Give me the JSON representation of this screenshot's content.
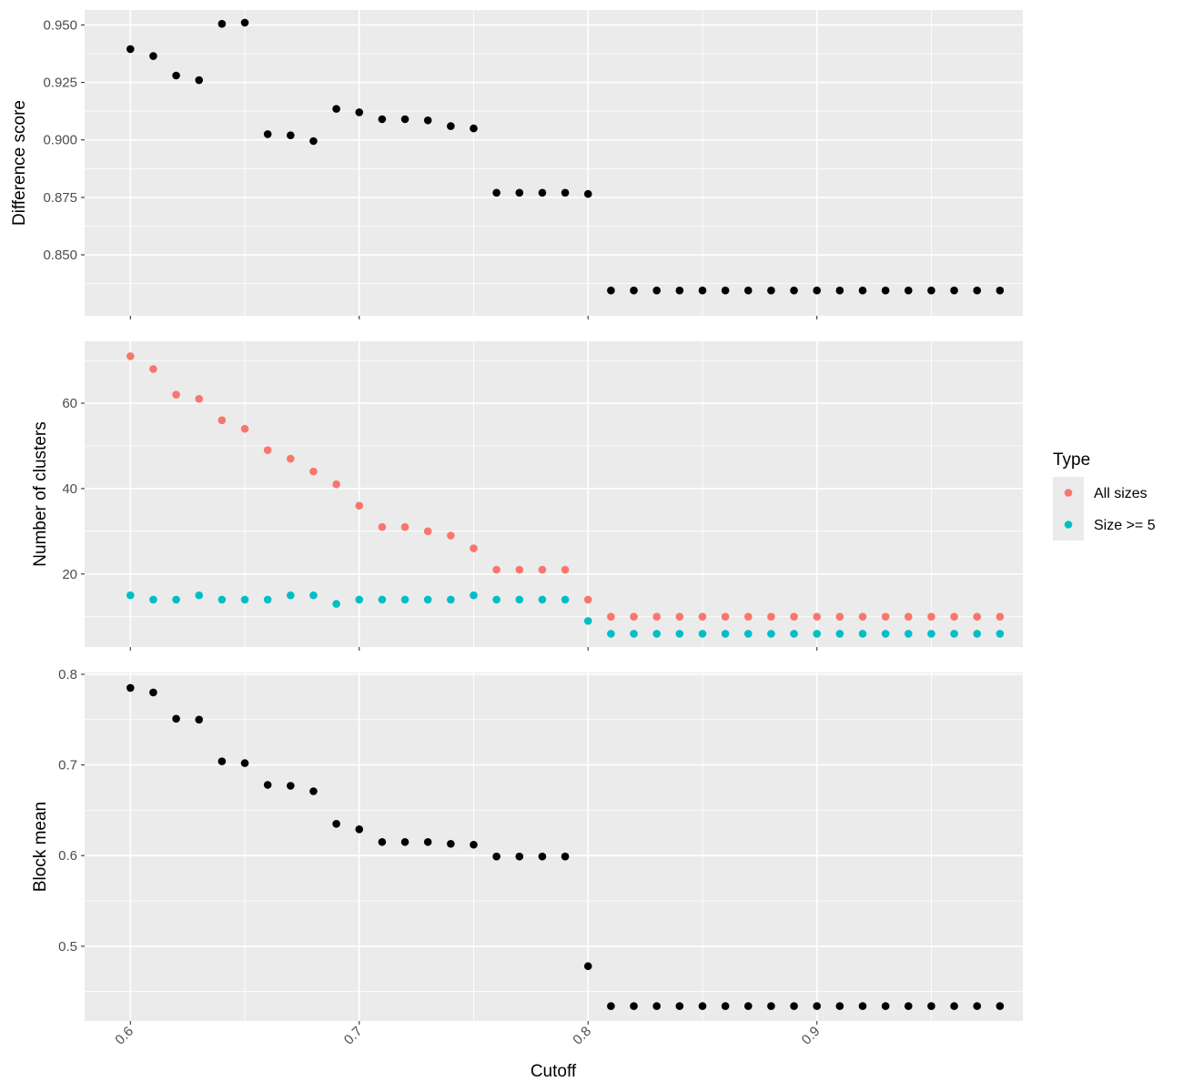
{
  "chart_data": {
    "type": "scatter",
    "xlabel": "Cutoff",
    "xlim": [
      0.58,
      0.99
    ],
    "xticks": [
      0.6,
      0.7,
      0.8,
      0.9
    ],
    "x": [
      0.6,
      0.61,
      0.62,
      0.63,
      0.64,
      0.65,
      0.66,
      0.67,
      0.68,
      0.69,
      0.7,
      0.71,
      0.72,
      0.73,
      0.74,
      0.75,
      0.76,
      0.77,
      0.78,
      0.79,
      0.8,
      0.81,
      0.82,
      0.83,
      0.84,
      0.85,
      0.86,
      0.87,
      0.88,
      0.89,
      0.9,
      0.91,
      0.92,
      0.93,
      0.94,
      0.95,
      0.96,
      0.97,
      0.98
    ],
    "grid": true,
    "legend": {
      "title": "Type",
      "placement": "right",
      "entries": [
        {
          "label": "All sizes",
          "color": "#f8766d"
        },
        {
          "label": "Size >= 5",
          "color": "#00bfc4"
        }
      ]
    },
    "panels": [
      {
        "ylabel": "Difference score",
        "ylim": [
          0.8235,
          0.9565
        ],
        "yticks": [
          0.85,
          0.875,
          0.9,
          0.925,
          0.95
        ],
        "series": [
          {
            "color": "#000000",
            "values": [
              0.9395,
              0.9365,
              0.928,
              0.926,
              0.9505,
              0.951,
              0.9025,
              0.902,
              0.8995,
              0.9135,
              0.912,
              0.909,
              0.909,
              0.9085,
              0.906,
              0.905,
              0.877,
              0.877,
              0.877,
              0.877,
              0.8765,
              0.8345,
              0.8345,
              0.8345,
              0.8345,
              0.8345,
              0.8345,
              0.8345,
              0.8345,
              0.8345,
              0.8345,
              0.8345,
              0.8345,
              0.8345,
              0.8345,
              0.8345,
              0.8345,
              0.8345,
              0.8345
            ]
          }
        ]
      },
      {
        "ylabel": "Number of clusters",
        "ylim": [
          2.9,
          74.5
        ],
        "yticks": [
          20,
          40,
          60
        ],
        "series": [
          {
            "name": "All sizes",
            "color": "#f8766d",
            "values": [
              71,
              68,
              62,
              61,
              56,
              54,
              49,
              47,
              44,
              41,
              36,
              31,
              31,
              30,
              29,
              26,
              21,
              21,
              21,
              21,
              14,
              10,
              10,
              10,
              10,
              10,
              10,
              10,
              10,
              10,
              10,
              10,
              10,
              10,
              10,
              10,
              10,
              10,
              10
            ]
          },
          {
            "name": "Size >= 5",
            "color": "#00bfc4",
            "values": [
              15,
              14,
              14,
              15,
              14,
              14,
              14,
              15,
              15,
              13,
              14,
              14,
              14,
              14,
              14,
              15,
              14,
              14,
              14,
              14,
              9,
              6,
              6,
              6,
              6,
              6,
              6,
              6,
              6,
              6,
              6,
              6,
              6,
              6,
              6,
              6,
              6,
              6,
              6
            ]
          }
        ]
      },
      {
        "ylabel": "Block mean",
        "ylim": [
          0.4175,
          0.802
        ],
        "yticks": [
          0.5,
          0.6,
          0.7,
          0.8
        ],
        "series": [
          {
            "color": "#000000",
            "values": [
              0.785,
              0.78,
              0.751,
              0.75,
              0.704,
              0.702,
              0.678,
              0.677,
              0.671,
              0.635,
              0.629,
              0.615,
              0.615,
              0.615,
              0.613,
              0.612,
              0.599,
              0.599,
              0.599,
              0.599,
              0.478,
              0.434,
              0.434,
              0.434,
              0.434,
              0.434,
              0.434,
              0.434,
              0.434,
              0.434,
              0.434,
              0.434,
              0.434,
              0.434,
              0.434,
              0.434,
              0.434,
              0.434,
              0.434
            ]
          }
        ]
      }
    ]
  }
}
